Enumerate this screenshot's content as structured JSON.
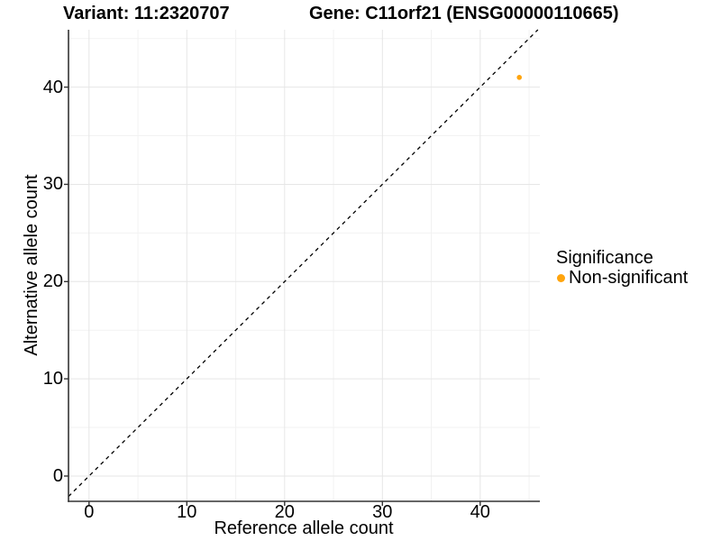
{
  "header": {
    "variant_title": "Variant: 11:2320707",
    "gene_title": "Gene: C11orf21 (ENSG00000110665)"
  },
  "legend": {
    "title": "Significance",
    "items": [
      {
        "label": "Non-significant",
        "color": "#FFA40D"
      }
    ]
  },
  "chart_data": {
    "type": "scatter",
    "titles": [
      "Variant: 11:2320707",
      "Gene: C11orf21 (ENSG00000110665)"
    ],
    "xlabel": "Reference allele count",
    "ylabel": "Alternative allele count",
    "x_ticks": [
      0,
      10,
      20,
      30,
      40
    ],
    "y_ticks": [
      0,
      10,
      20,
      30,
      40
    ],
    "minor_ticks": [
      5,
      15,
      25,
      35,
      45
    ],
    "xlim": [
      -2.1,
      46.1
    ],
    "ylim": [
      -2.6,
      45.9
    ],
    "grid": true,
    "legend_position": "right",
    "identity_line": {
      "style": "dashed",
      "slope": 1,
      "intercept": 0,
      "color": "#000000"
    },
    "series": [
      {
        "name": "Non-significant",
        "color": "#FFA40D",
        "points": [
          {
            "x": 44,
            "y": 41
          }
        ]
      }
    ]
  },
  "colors": {
    "background": "#ffffff",
    "axis": "#333333",
    "tick_text": "#000000",
    "grid_major": "#e6e6e6",
    "grid_minor": "#f2f2f2"
  }
}
